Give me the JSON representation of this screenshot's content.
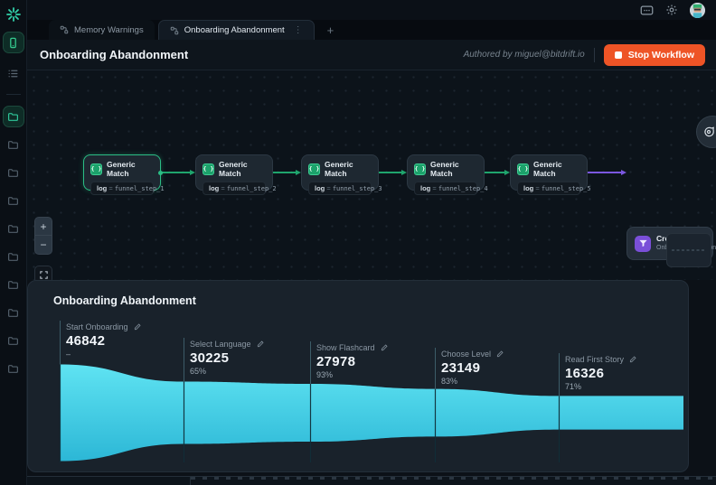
{
  "colors": {
    "accent_green": "#1fa56d",
    "accent_purple": "#7b57e0",
    "funnel_top": "#5fe3f2",
    "funnel_bottom": "#2cb7d6",
    "stop_red": "#ee5426",
    "selected_node_border": "#2bbd85"
  },
  "sidebar": {
    "logo_icon": "bitdrift-burst-icon",
    "top_items": [
      {
        "icon": "phone-icon",
        "active": true
      },
      {
        "icon": "list-icon",
        "active": false
      }
    ],
    "folders": [
      {
        "active": true
      },
      {
        "active": false
      },
      {
        "active": false
      },
      {
        "active": false
      },
      {
        "active": false
      },
      {
        "active": false
      },
      {
        "active": false
      },
      {
        "active": false
      },
      {
        "active": false
      },
      {
        "active": false
      }
    ]
  },
  "topbar": {
    "icons": [
      "message-icon",
      "gear-icon"
    ],
    "avatar": "user-avatar"
  },
  "tabs": {
    "items": [
      {
        "label": "Memory Warnings",
        "icon": "workflow-icon",
        "active": false
      },
      {
        "label": "Onboarding Abandonment",
        "icon": "workflow-icon",
        "active": true,
        "menu": "⋮"
      }
    ],
    "add_label": "+"
  },
  "header": {
    "title": "Onboarding Abandonment",
    "authored_by": "Authored by miguel@bitdrift.io",
    "stop_button": {
      "label": "Stop Workflow",
      "icon": "stop-square-icon"
    }
  },
  "workflow": {
    "nodes": [
      {
        "title": "Generic Match",
        "icon": "braces-icon",
        "key": "log",
        "op": "=",
        "value": "funnel_step_1",
        "selected": true
      },
      {
        "title": "Generic Match",
        "icon": "braces-icon",
        "key": "log",
        "op": "=",
        "value": "funnel_step_2",
        "selected": false
      },
      {
        "title": "Generic Match",
        "icon": "braces-icon",
        "key": "log",
        "op": "=",
        "value": "funnel_step_3",
        "selected": false
      },
      {
        "title": "Generic Match",
        "icon": "braces-icon",
        "key": "log",
        "op": "=",
        "value": "funnel_step_4",
        "selected": false
      },
      {
        "title": "Generic Match",
        "icon": "braces-icon",
        "key": "log",
        "op": "=",
        "value": "funnel_step_5",
        "selected": false
      }
    ],
    "output_node": {
      "title": "Create Funnel",
      "subtitle": "Onboarding Abandonment",
      "icon": "funnel-icon"
    },
    "controls": [
      "zoom-in",
      "zoom-out",
      "fit-view"
    ]
  },
  "funnel_panel": {
    "title": "Onboarding Abandonment"
  },
  "chart_data": {
    "type": "funnel",
    "title": "Onboarding Abandonment",
    "steps": [
      {
        "label": "Start Onboarding",
        "value": 46842,
        "conversion": "–"
      },
      {
        "label": "Select Language",
        "value": 30225,
        "conversion": "65%"
      },
      {
        "label": "Show Flashcard",
        "value": 27978,
        "conversion": "93%"
      },
      {
        "label": "Choose Level",
        "value": 23149,
        "conversion": "83%"
      },
      {
        "label": "Read First Story",
        "value": 16326,
        "conversion": "71%"
      }
    ],
    "bar_color_top": "#5fe3f2",
    "bar_color_bottom": "#2cb7d6",
    "legend": "none",
    "grid": "off"
  }
}
